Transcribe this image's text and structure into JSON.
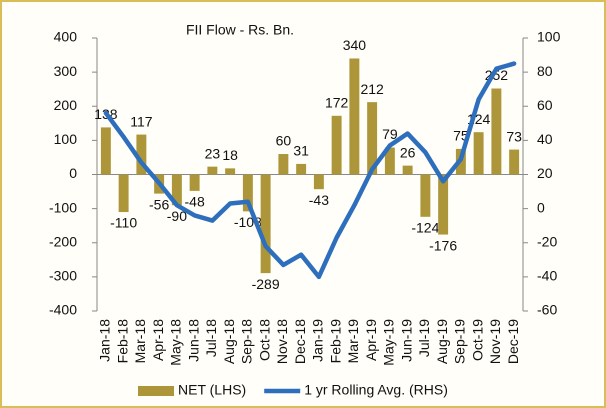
{
  "chart_data": {
    "type": "bar",
    "title": "FII Flow  - Rs. Bn.",
    "categories": [
      "Jan-18",
      "Feb-18",
      "Mar-18",
      "Apr-18",
      "May-18",
      "Jun-18",
      "Jul-18",
      "Aug-18",
      "Sep-18",
      "Oct-18",
      "Nov-18",
      "Dec-18",
      "Jan-19",
      "Feb-19",
      "Mar-19",
      "Apr-19",
      "May-19",
      "Jun-19",
      "Jul-19",
      "Aug-19",
      "Sep-19",
      "Oct-19",
      "Nov-19",
      "Dec-19"
    ],
    "series": [
      {
        "name": "NET (LHS)",
        "type": "bar",
        "color": "#ad963a",
        "values": [
          138,
          -110,
          117,
          -56,
          -90,
          -48,
          23,
          18,
          -108,
          -289,
          60,
          31,
          -43,
          172,
          340,
          212,
          79,
          26,
          -124,
          -176,
          75,
          124,
          252,
          73
        ]
      },
      {
        "name": "1 yr Rolling Avg. (RHS)",
        "type": "line",
        "axis": "y2",
        "color": "#2e6fbd",
        "values": [
          56,
          42,
          27,
          15,
          2,
          -4,
          -7,
          3,
          4,
          -22,
          -33,
          -27,
          -40,
          -17,
          2,
          23,
          37,
          44,
          33,
          16,
          29,
          64,
          82,
          85
        ]
      }
    ],
    "ylim": [
      -400,
      400
    ],
    "yticks": [
      -400,
      -300,
      -200,
      -100,
      0,
      100,
      200,
      300,
      400
    ],
    "y2lim": [
      -60,
      100
    ],
    "y2ticks": [
      -60,
      -40,
      -20,
      0,
      20,
      40,
      60,
      80,
      100
    ],
    "grid": false,
    "legend": "bottom"
  }
}
